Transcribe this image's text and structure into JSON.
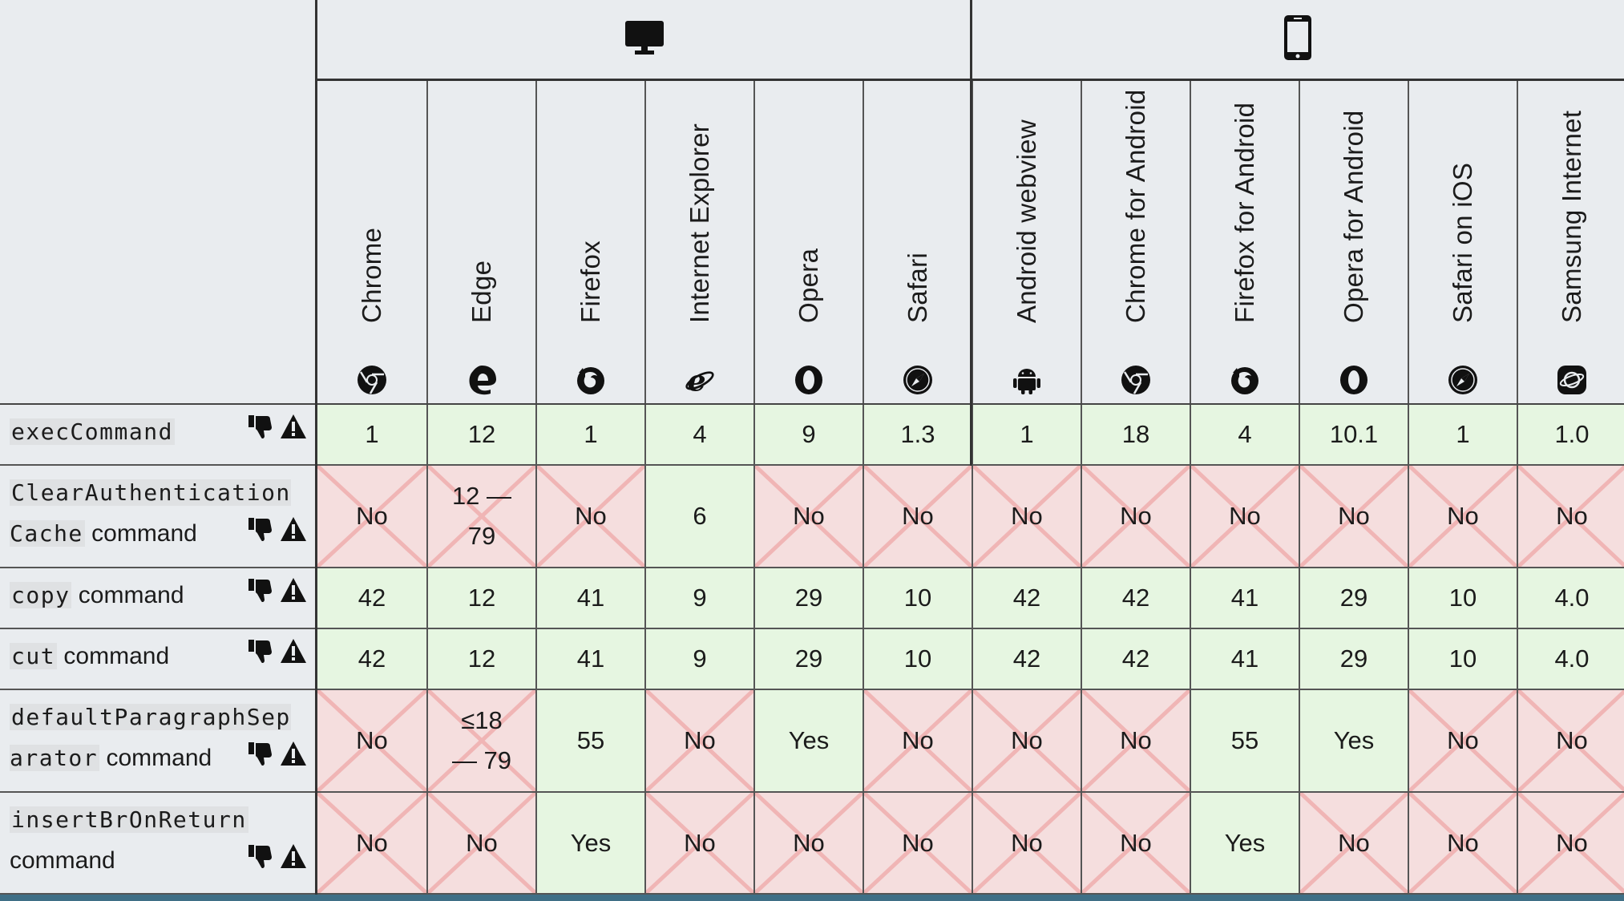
{
  "header": {
    "platforms": [
      {
        "name": "desktop",
        "icon": "monitor-icon"
      },
      {
        "name": "mobile",
        "icon": "phone-icon"
      }
    ],
    "browsers": [
      {
        "name": "Chrome",
        "icon": "chrome-icon"
      },
      {
        "name": "Edge",
        "icon": "edge-icon"
      },
      {
        "name": "Firefox",
        "icon": "firefox-icon"
      },
      {
        "name": "Internet Explorer",
        "icon": "internet-explorer-icon"
      },
      {
        "name": "Opera",
        "icon": "opera-icon"
      },
      {
        "name": "Safari",
        "icon": "safari-icon"
      },
      {
        "name": "Android webview",
        "icon": "android-icon"
      },
      {
        "name": "Chrome for Android",
        "icon": "chrome-icon"
      },
      {
        "name": "Firefox for Android",
        "icon": "firefox-icon"
      },
      {
        "name": "Opera for Android",
        "icon": "opera-icon"
      },
      {
        "name": "Safari on iOS",
        "icon": "safari-icon"
      },
      {
        "name": "Samsung Internet",
        "icon": "samsung-internet-icon"
      }
    ]
  },
  "rows": [
    {
      "code": "execCommand",
      "label": "",
      "cells": [
        {
          "v": "1",
          "s": "yes"
        },
        {
          "v": "12",
          "s": "yes"
        },
        {
          "v": "1",
          "s": "yes"
        },
        {
          "v": "4",
          "s": "yes"
        },
        {
          "v": "9",
          "s": "yes"
        },
        {
          "v": "1.3",
          "s": "yes"
        },
        {
          "v": "1",
          "s": "yes"
        },
        {
          "v": "18",
          "s": "yes"
        },
        {
          "v": "4",
          "s": "yes"
        },
        {
          "v": "10.1",
          "s": "yes"
        },
        {
          "v": "1",
          "s": "yes"
        },
        {
          "v": "1.0",
          "s": "yes"
        }
      ]
    },
    {
      "code": "ClearAuthentication Cache",
      "label": "command",
      "cells": [
        {
          "v": "No",
          "s": "no"
        },
        {
          "v": "12 — 79",
          "s": "no"
        },
        {
          "v": "No",
          "s": "no"
        },
        {
          "v": "6",
          "s": "yes"
        },
        {
          "v": "No",
          "s": "no"
        },
        {
          "v": "No",
          "s": "no"
        },
        {
          "v": "No",
          "s": "no"
        },
        {
          "v": "No",
          "s": "no"
        },
        {
          "v": "No",
          "s": "no"
        },
        {
          "v": "No",
          "s": "no"
        },
        {
          "v": "No",
          "s": "no"
        },
        {
          "v": "No",
          "s": "no"
        }
      ]
    },
    {
      "code": "copy",
      "label": "command",
      "cells": [
        {
          "v": "42",
          "s": "yes"
        },
        {
          "v": "12",
          "s": "yes"
        },
        {
          "v": "41",
          "s": "yes"
        },
        {
          "v": "9",
          "s": "yes"
        },
        {
          "v": "29",
          "s": "yes"
        },
        {
          "v": "10",
          "s": "yes"
        },
        {
          "v": "42",
          "s": "yes"
        },
        {
          "v": "42",
          "s": "yes"
        },
        {
          "v": "41",
          "s": "yes"
        },
        {
          "v": "29",
          "s": "yes"
        },
        {
          "v": "10",
          "s": "yes"
        },
        {
          "v": "4.0",
          "s": "yes"
        }
      ]
    },
    {
      "code": "cut",
      "label": "command",
      "cells": [
        {
          "v": "42",
          "s": "yes"
        },
        {
          "v": "12",
          "s": "yes"
        },
        {
          "v": "41",
          "s": "yes"
        },
        {
          "v": "9",
          "s": "yes"
        },
        {
          "v": "29",
          "s": "yes"
        },
        {
          "v": "10",
          "s": "yes"
        },
        {
          "v": "42",
          "s": "yes"
        },
        {
          "v": "42",
          "s": "yes"
        },
        {
          "v": "41",
          "s": "yes"
        },
        {
          "v": "29",
          "s": "yes"
        },
        {
          "v": "10",
          "s": "yes"
        },
        {
          "v": "4.0",
          "s": "yes"
        }
      ]
    },
    {
      "code": "defaultParagraphSep arator",
      "label": "command",
      "cells": [
        {
          "v": "No",
          "s": "no"
        },
        {
          "v": "≤18 — 79",
          "s": "no"
        },
        {
          "v": "55",
          "s": "yes"
        },
        {
          "v": "No",
          "s": "no"
        },
        {
          "v": "Yes",
          "s": "yes"
        },
        {
          "v": "No",
          "s": "no"
        },
        {
          "v": "No",
          "s": "no"
        },
        {
          "v": "No",
          "s": "no"
        },
        {
          "v": "55",
          "s": "yes"
        },
        {
          "v": "Yes",
          "s": "yes"
        },
        {
          "v": "No",
          "s": "no"
        },
        {
          "v": "No",
          "s": "no"
        }
      ]
    },
    {
      "code": "insertBrOnReturn",
      "label": "command",
      "cells": [
        {
          "v": "No",
          "s": "no"
        },
        {
          "v": "No",
          "s": "no"
        },
        {
          "v": "Yes",
          "s": "yes"
        },
        {
          "v": "No",
          "s": "no"
        },
        {
          "v": "No",
          "s": "no"
        },
        {
          "v": "No",
          "s": "no"
        },
        {
          "v": "No",
          "s": "no"
        },
        {
          "v": "No",
          "s": "no"
        },
        {
          "v": "Yes",
          "s": "yes"
        },
        {
          "v": "No",
          "s": "no"
        },
        {
          "v": "No",
          "s": "no"
        },
        {
          "v": "No",
          "s": "no"
        }
      ]
    }
  ],
  "row_icons": [
    "thumbs-down-icon",
    "warning-icon"
  ],
  "colors": {
    "supported": "#e6f6e1",
    "unsupported": "#f5dede",
    "cross": "#f0b5b5",
    "feature_bg": "#e9ecef",
    "border": "#333333"
  }
}
